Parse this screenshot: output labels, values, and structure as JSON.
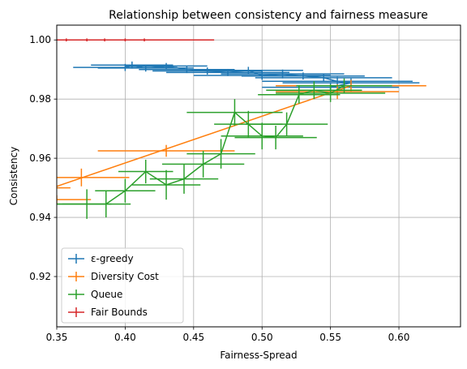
{
  "chart_data": {
    "type": "line",
    "title": "Relationship between consistency and fairness measure",
    "xlabel": "Fairness-Spread",
    "ylabel": "Consistency",
    "xlim": [
      0.35,
      0.645
    ],
    "ylim": [
      0.903,
      1.005
    ],
    "x_ticks": [
      0.35,
      0.4,
      0.45,
      0.5,
      0.55,
      0.6
    ],
    "x_tick_labels": [
      "0.35",
      "0.40",
      "0.45",
      "0.50",
      "0.55",
      "0.60"
    ],
    "y_ticks": [
      0.92,
      0.94,
      0.96,
      0.98,
      1.0
    ],
    "y_tick_labels": [
      "0.92",
      "0.94",
      "0.96",
      "0.98",
      "1.00"
    ],
    "grid": true,
    "legend_position": "lower-left",
    "series": [
      {
        "name": "ε-greedy",
        "color": "#1f77b4",
        "points": [
          {
            "x": 0.4,
            "y": 0.9907,
            "xerr": 0.038,
            "yerr": 0.0012
          },
          {
            "x": 0.405,
            "y": 0.9915,
            "xerr": 0.03,
            "yerr": 0.0012
          },
          {
            "x": 0.415,
            "y": 0.9905,
            "xerr": 0.035,
            "yerr": 0.0012
          },
          {
            "x": 0.43,
            "y": 0.9912,
            "xerr": 0.03,
            "yerr": 0.001
          },
          {
            "x": 0.445,
            "y": 0.99,
            "xerr": 0.035,
            "yerr": 0.0012
          },
          {
            "x": 0.46,
            "y": 0.9895,
            "xerr": 0.04,
            "yerr": 0.0012
          },
          {
            "x": 0.475,
            "y": 0.989,
            "xerr": 0.045,
            "yerr": 0.0012
          },
          {
            "x": 0.49,
            "y": 0.9897,
            "xerr": 0.04,
            "yerr": 0.0012
          },
          {
            "x": 0.5,
            "y": 0.988,
            "xerr": 0.05,
            "yerr": 0.0015
          },
          {
            "x": 0.515,
            "y": 0.9885,
            "xerr": 0.045,
            "yerr": 0.0015
          },
          {
            "x": 0.53,
            "y": 0.9878,
            "xerr": 0.045,
            "yerr": 0.0012
          },
          {
            "x": 0.545,
            "y": 0.9872,
            "xerr": 0.05,
            "yerr": 0.0012
          },
          {
            "x": 0.555,
            "y": 0.986,
            "xerr": 0.055,
            "yerr": 0.0015
          },
          {
            "x": 0.565,
            "y": 0.9855,
            "xerr": 0.05,
            "yerr": 0.0015
          },
          {
            "x": 0.55,
            "y": 0.984,
            "xerr": 0.05,
            "yerr": 0.0015
          }
        ]
      },
      {
        "name": "Diversity Cost",
        "color": "#ff7f0e",
        "points": [
          {
            "x": 0.33,
            "y": 0.95,
            "xerr": 0.03,
            "yerr": 0.0015
          },
          {
            "x": 0.35,
            "y": 0.946,
            "xerr": 0.025,
            "yerr": 0.0015
          },
          {
            "x": 0.368,
            "y": 0.9535,
            "xerr": 0.035,
            "yerr": 0.003
          },
          {
            "x": 0.43,
            "y": 0.9625,
            "xerr": 0.05,
            "yerr": 0.002
          },
          {
            "x": 0.555,
            "y": 0.9825,
            "xerr": 0.045,
            "yerr": 0.0025
          },
          {
            "x": 0.565,
            "y": 0.9845,
            "xerr": 0.055,
            "yerr": 0.002
          }
        ],
        "trend": [
          [
            0.35,
            0.9505
          ],
          [
            0.565,
            0.9845
          ]
        ]
      },
      {
        "name": "Queue",
        "color": "#2ca02c",
        "points": [
          {
            "x": 0.338,
            "y": 0.9445,
            "xerr": 0.03,
            "yerr": 0.0015
          },
          {
            "x": 0.372,
            "y": 0.9445,
            "xerr": 0.018,
            "yerr": 0.005
          },
          {
            "x": 0.386,
            "y": 0.9445,
            "xerr": 0.018,
            "yerr": 0.0045
          },
          {
            "x": 0.4,
            "y": 0.949,
            "xerr": 0.022,
            "yerr": 0.004
          },
          {
            "x": 0.415,
            "y": 0.9555,
            "xerr": 0.02,
            "yerr": 0.004
          },
          {
            "x": 0.43,
            "y": 0.951,
            "xerr": 0.025,
            "yerr": 0.005
          },
          {
            "x": 0.443,
            "y": 0.953,
            "xerr": 0.025,
            "yerr": 0.005
          },
          {
            "x": 0.457,
            "y": 0.958,
            "xerr": 0.03,
            "yerr": 0.0045
          },
          {
            "x": 0.47,
            "y": 0.9615,
            "xerr": 0.025,
            "yerr": 0.005
          },
          {
            "x": 0.48,
            "y": 0.9755,
            "xerr": 0.035,
            "yerr": 0.0045
          },
          {
            "x": 0.49,
            "y": 0.9715,
            "xerr": 0.025,
            "yerr": 0.0045
          },
          {
            "x": 0.5,
            "y": 0.9675,
            "xerr": 0.03,
            "yerr": 0.0045
          },
          {
            "x": 0.51,
            "y": 0.967,
            "xerr": 0.03,
            "yerr": 0.004
          },
          {
            "x": 0.518,
            "y": 0.9715,
            "xerr": 0.03,
            "yerr": 0.004
          },
          {
            "x": 0.527,
            "y": 0.9815,
            "xerr": 0.03,
            "yerr": 0.003
          },
          {
            "x": 0.538,
            "y": 0.983,
            "xerr": 0.035,
            "yerr": 0.003
          },
          {
            "x": 0.55,
            "y": 0.982,
            "xerr": 0.04,
            "yerr": 0.003
          },
          {
            "x": 0.56,
            "y": 0.9845,
            "xerr": 0.035,
            "yerr": 0.0025
          }
        ]
      },
      {
        "name": "Fair Bounds",
        "color": "#d62728",
        "points": [
          {
            "x": 0.357,
            "y": 1.0,
            "xerr": 0.0,
            "yerr": 0.0005
          },
          {
            "x": 0.372,
            "y": 1.0,
            "xerr": 0.0,
            "yerr": 0.0005
          },
          {
            "x": 0.385,
            "y": 1.0,
            "xerr": 0.0,
            "yerr": 0.0005
          },
          {
            "x": 0.4,
            "y": 1.0,
            "xerr": 0.0,
            "yerr": 0.0005
          },
          {
            "x": 0.414,
            "y": 1.0,
            "xerr": 0.0,
            "yerr": 0.0005
          }
        ],
        "line": [
          [
            0.35,
            1.0
          ],
          [
            0.465,
            1.0
          ]
        ]
      }
    ]
  }
}
